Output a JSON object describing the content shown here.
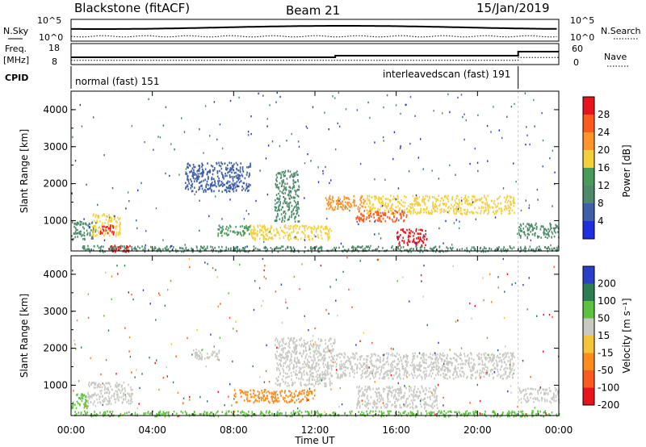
{
  "header": {
    "station": "Blackstone (fitACF)",
    "beam": "Beam 21",
    "date": "15/Jan/2019"
  },
  "sky_panel": {
    "left_label": "N.Sky",
    "right_label": "N.Search",
    "ticks_left": [
      "10^5",
      "10^0"
    ],
    "ticks_right": [
      "10^5",
      "10^0"
    ]
  },
  "freq_panel": {
    "left_label_1": "Freq.",
    "left_label_2": "[MHz]",
    "left_ticks": [
      "18",
      "8"
    ],
    "right_label": "Nave",
    "right_ticks": [
      "60",
      "0"
    ]
  },
  "cpid_panel": {
    "label": "CPID",
    "mode_1": "normal (fast) 151",
    "mode_2": "interleavedscan (fast) 191"
  },
  "axes": {
    "ylabel": "Slant Range [km]",
    "xlabel": "Time UT",
    "yticks": [
      "1000",
      "2000",
      "3000",
      "4000"
    ],
    "xticks": [
      "00:00",
      "04:00",
      "08:00",
      "12:00",
      "16:00",
      "20:00",
      "00:00"
    ]
  },
  "power_scale": {
    "label": "Power [dB]",
    "ticks": [
      "28",
      "24",
      "20",
      "16",
      "12",
      "8",
      "4"
    ],
    "colors": [
      "#e8141c",
      "#ff5a1e",
      "#ff9428",
      "#f4cf3c",
      "#4a9a5a",
      "#4d8a6a",
      "#3f5fa8",
      "#1f2fe0"
    ]
  },
  "velocity_scale": {
    "label": "Velocity [m s⁻¹]",
    "ticks": [
      "200",
      "100",
      "50",
      "15",
      "-15",
      "-50",
      "-100",
      "-200"
    ],
    "colors": [
      "#2b3fc8",
      "#2c7e50",
      "#5dc23d",
      "#c9c9c4",
      "#f6c43a",
      "#ff8c1a",
      "#ff5a1e",
      "#e8141c"
    ]
  },
  "chart_data": {
    "type": "heatmap",
    "x_range_hours": [
      0,
      24
    ],
    "y_range_km": [
      180,
      4500
    ],
    "power_regions": [
      {
        "t0": 0.0,
        "t1": 1.2,
        "r0": 500,
        "r1": 1000,
        "power": 10
      },
      {
        "t0": 1.0,
        "t1": 2.4,
        "r0": 600,
        "r1": 1200,
        "power": 14
      },
      {
        "t0": 1.4,
        "t1": 2.1,
        "r0": 650,
        "r1": 900,
        "power": 26
      },
      {
        "t0": 0.5,
        "t1": 3.0,
        "r0": 180,
        "r1": 350,
        "power": 10
      },
      {
        "t0": 1.8,
        "t1": 2.9,
        "r0": 180,
        "r1": 350,
        "power": 30
      },
      {
        "t0": 3.0,
        "t1": 24.0,
        "r0": 180,
        "r1": 330,
        "power": 10
      },
      {
        "t0": 5.6,
        "t1": 8.8,
        "r0": 1800,
        "r1": 2600,
        "power": 5
      },
      {
        "t0": 7.2,
        "t1": 8.8,
        "r0": 600,
        "r1": 900,
        "power": 12
      },
      {
        "t0": 8.8,
        "t1": 12.8,
        "r0": 500,
        "r1": 900,
        "power": 14
      },
      {
        "t0": 10.0,
        "t1": 11.2,
        "r0": 1000,
        "r1": 2400,
        "power": 10
      },
      {
        "t0": 12.5,
        "t1": 14.5,
        "r0": 1300,
        "r1": 1700,
        "power": 18
      },
      {
        "t0": 14.5,
        "t1": 21.8,
        "r0": 1200,
        "r1": 1700,
        "power": 16
      },
      {
        "t0": 14.0,
        "t1": 16.5,
        "r0": 1000,
        "r1": 1300,
        "power": 24
      },
      {
        "t0": 16.0,
        "t1": 17.5,
        "r0": 350,
        "r1": 800,
        "power": 26
      },
      {
        "t0": 22.0,
        "t1": 24.0,
        "r0": 550,
        "r1": 950,
        "power": 8
      }
    ],
    "velocity_regions": [
      {
        "t0": 0.0,
        "t1": 0.8,
        "r0": 400,
        "r1": 800,
        "velocity": 60
      },
      {
        "t0": 0.8,
        "t1": 3.0,
        "r0": 500,
        "r1": 1100,
        "velocity": 0
      },
      {
        "t0": 6.0,
        "t1": 7.3,
        "r0": 1700,
        "r1": 2000,
        "velocity": 0
      },
      {
        "t0": 8.0,
        "t1": 12.0,
        "r0": 550,
        "r1": 900,
        "velocity": -60
      },
      {
        "t0": 10.0,
        "t1": 13.0,
        "r0": 1000,
        "r1": 2300,
        "velocity": 0
      },
      {
        "t0": 13.0,
        "t1": 21.8,
        "r0": 1200,
        "r1": 1900,
        "velocity": 0
      },
      {
        "t0": 14.0,
        "t1": 18.0,
        "r0": 400,
        "r1": 1000,
        "velocity": 0
      },
      {
        "t0": 0.0,
        "t1": 24.0,
        "r0": 180,
        "r1": 330,
        "velocity": 40
      },
      {
        "t0": 22.0,
        "t1": 24.0,
        "r0": 550,
        "r1": 950,
        "velocity": 0
      }
    ],
    "frequency_MHz": [
      {
        "t0": 0,
        "t1": 13,
        "value": 10.5
      },
      {
        "t0": 13,
        "t1": 22,
        "value": 11.5
      },
      {
        "t0": 22,
        "t1": 24,
        "value": 14
      }
    ],
    "nave": [
      {
        "t0": 0,
        "t1": 22,
        "value": 10
      },
      {
        "t0": 22,
        "t1": 24,
        "value": 20
      }
    ],
    "cpid_change_hour": 22
  }
}
